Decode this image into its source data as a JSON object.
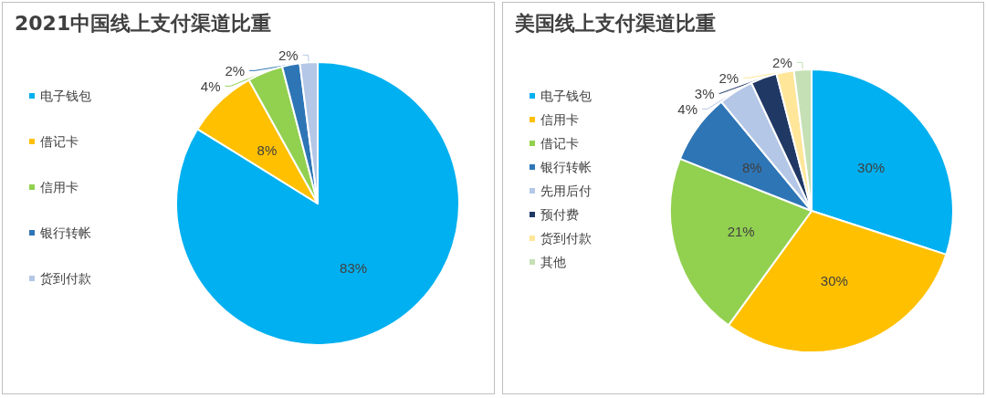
{
  "chart_data": [
    {
      "type": "pie",
      "title": "2021中国线上支付渠道比重",
      "categories": [
        "电子钱包",
        "借记卡",
        "信用卡",
        "银行转帐",
        "货到付款"
      ],
      "values": [
        83,
        8,
        4,
        2,
        2
      ],
      "value_labels": [
        "83%",
        "8%",
        "4%",
        "2%",
        "2%"
      ],
      "colors": [
        "#00b0f0",
        "#ffc000",
        "#92d050",
        "#2e75b6",
        "#b4c7e7"
      ],
      "legend": "left"
    },
    {
      "type": "pie",
      "title": "美国线上支付渠道比重",
      "categories": [
        "电子钱包",
        "信用卡",
        "借记卡",
        "银行转帐",
        "先用后付",
        "预付费",
        "货到付款",
        "其他"
      ],
      "values": [
        30,
        30,
        21,
        8,
        4,
        3,
        2,
        2
      ],
      "value_labels": [
        "30%",
        "30%",
        "21%",
        "8%",
        "4%",
        "3%",
        "2%",
        "2%"
      ],
      "colors": [
        "#00b0f0",
        "#ffc000",
        "#92d050",
        "#2e75b6",
        "#b4c7e7",
        "#203864",
        "#ffe699",
        "#c5e0b4"
      ],
      "legend": "left"
    }
  ]
}
